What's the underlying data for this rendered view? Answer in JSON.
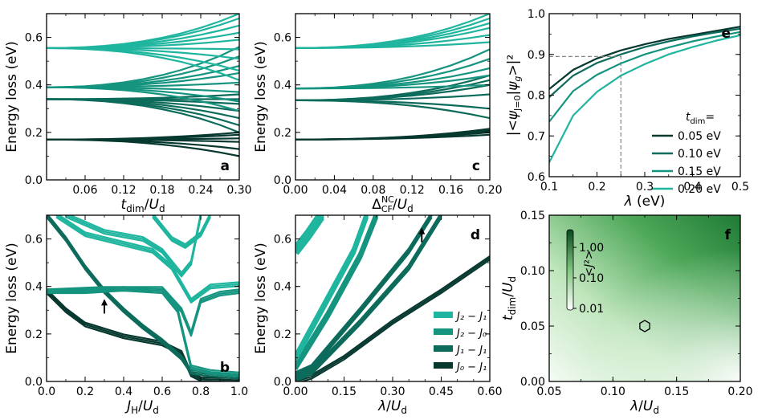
{
  "colors": {
    "teal_light": "#1fb59e",
    "teal_mid": "#15947f",
    "teal_dark": "#0c6b5a",
    "teal_darkest": "#06382f",
    "green_heat": "#2e8b3e"
  },
  "chart_data": [
    {
      "id": "a",
      "type": "line",
      "panel_label": "a",
      "xlabel": "t_dim/U_d",
      "ylabel": "Energy loss (eV)",
      "xlim": [
        0.0,
        0.3
      ],
      "ylim": [
        0.0,
        0.7
      ],
      "xticks": [
        0.06,
        0.12,
        0.18,
        0.24,
        0.3
      ],
      "xtick_labels": [
        "0.06",
        "0.12",
        "0.18",
        "0.24",
        "0.30"
      ],
      "yticks": [
        0.0,
        0.2,
        0.4,
        0.6
      ],
      "ytick_labels": [
        "0.0",
        "0.2",
        "0.4",
        "0.6"
      ],
      "bands": [
        {
          "start": 0.17,
          "ends": [
            0.1,
            0.13,
            0.16,
            0.175,
            0.19,
            0.2
          ],
          "color": "teal_darkest"
        },
        {
          "start": 0.34,
          "ends": [
            0.2,
            0.23,
            0.26,
            0.29,
            0.32,
            0.34,
            0.36
          ],
          "color": "teal_dark"
        },
        {
          "start": 0.39,
          "ends": [
            0.29,
            0.33,
            0.37,
            0.41,
            0.45,
            0.48,
            0.52,
            0.56
          ],
          "color": "teal_mid"
        },
        {
          "start": 0.555,
          "ends": [
            0.42,
            0.46,
            0.51,
            0.55,
            0.59,
            0.62,
            0.65,
            0.68,
            0.7
          ],
          "color": "teal_light"
        }
      ]
    },
    {
      "id": "b",
      "type": "line",
      "panel_label": "b",
      "xlabel": "J_H/U_d",
      "ylabel": "Energy loss (eV)",
      "xlim": [
        0.0,
        1.0
      ],
      "ylim": [
        0.0,
        0.7
      ],
      "xticks": [
        0.0,
        0.2,
        0.4,
        0.6,
        0.8,
        1.0
      ],
      "xtick_labels": [
        "0.0",
        "0.2",
        "0.4",
        "0.6",
        "0.8",
        "1.0"
      ],
      "yticks": [
        0.0,
        0.2,
        0.4,
        0.6
      ],
      "ytick_labels": [
        "0.0",
        "0.2",
        "0.4",
        "0.6"
      ],
      "arrow_at": [
        0.3,
        0.32
      ],
      "curves": [
        {
          "points": [
            [
              0,
              0.38
            ],
            [
              0.1,
              0.3
            ],
            [
              0.2,
              0.24
            ],
            [
              0.4,
              0.19
            ],
            [
              0.6,
              0.16
            ],
            [
              0.7,
              0.12
            ],
            [
              0.75,
              0.03
            ],
            [
              0.8,
              0.01
            ],
            [
              1.0,
              0.005
            ]
          ],
          "color": "teal_darkest"
        },
        {
          "points": [
            [
              0,
              0.7
            ],
            [
              0.1,
              0.6
            ],
            [
              0.2,
              0.48
            ],
            [
              0.3,
              0.38
            ],
            [
              0.4,
              0.3
            ],
            [
              0.5,
              0.23
            ],
            [
              0.6,
              0.17
            ],
            [
              0.7,
              0.1
            ],
            [
              0.75,
              0.04
            ],
            [
              0.85,
              0.03
            ],
            [
              1.0,
              0.02
            ]
          ],
          "color": "teal_dark"
        },
        {
          "points": [
            [
              0,
              0.38
            ],
            [
              0.2,
              0.38
            ],
            [
              0.4,
              0.39
            ],
            [
              0.6,
              0.38
            ],
            [
              0.68,
              0.3
            ],
            [
              0.75,
              0.06
            ],
            [
              0.85,
              0.04
            ],
            [
              1.0,
              0.03
            ]
          ],
          "color": "teal_mid"
        },
        {
          "points": [
            [
              0,
              0.38
            ],
            [
              0.3,
              0.39
            ],
            [
              0.6,
              0.39
            ],
            [
              0.7,
              0.3
            ],
            [
              0.75,
              0.2
            ],
            [
              0.8,
              0.34
            ],
            [
              0.9,
              0.37
            ],
            [
              1.0,
              0.38
            ]
          ],
          "color": "teal_mid"
        },
        {
          "points": [
            [
              0.05,
              0.7
            ],
            [
              0.2,
              0.62
            ],
            [
              0.4,
              0.58
            ],
            [
              0.55,
              0.55
            ],
            [
              0.65,
              0.48
            ],
            [
              0.75,
              0.34
            ],
            [
              0.85,
              0.4
            ],
            [
              1.0,
              0.41
            ]
          ],
          "color": "teal_light"
        },
        {
          "points": [
            [
              0.1,
              0.7
            ],
            [
              0.3,
              0.63
            ],
            [
              0.5,
              0.6
            ],
            [
              0.6,
              0.55
            ],
            [
              0.7,
              0.45
            ],
            [
              0.75,
              0.5
            ],
            [
              0.8,
              0.7
            ]
          ],
          "color": "teal_light"
        },
        {
          "points": [
            [
              0.55,
              0.7
            ],
            [
              0.65,
              0.6
            ],
            [
              0.72,
              0.57
            ],
            [
              0.8,
              0.62
            ],
            [
              0.85,
              0.7
            ]
          ],
          "color": "teal_light"
        }
      ]
    },
    {
      "id": "c",
      "type": "line",
      "panel_label": "c",
      "xlabel": "Δ_CF^NC/U_d",
      "ylabel": "Energy loss (eV)",
      "xlim": [
        0.0,
        0.2
      ],
      "ylim": [
        0.0,
        0.7
      ],
      "xticks": [
        0.0,
        0.04,
        0.08,
        0.12,
        0.16,
        0.2
      ],
      "xtick_labels": [
        "0.00",
        "0.04",
        "0.08",
        "0.12",
        "0.16",
        "0.20"
      ],
      "yticks": [
        0.0,
        0.2,
        0.4,
        0.6
      ],
      "ytick_labels": [
        "0.0",
        "0.2",
        "0.4",
        "0.6"
      ],
      "bands": [
        {
          "start": 0.17,
          "ends": [
            0.19,
            0.2,
            0.205,
            0.21,
            0.215
          ],
          "color": "teal_darkest"
        },
        {
          "start": 0.335,
          "ends": [
            0.26,
            0.3,
            0.36,
            0.4,
            0.42,
            0.44
          ],
          "color": "teal_dark"
        },
        {
          "start": 0.385,
          "ends": [
            0.4,
            0.44,
            0.47,
            0.51,
            0.55
          ],
          "color": "teal_mid"
        },
        {
          "start": 0.555,
          "ends": [
            0.58,
            0.61,
            0.64,
            0.66,
            0.68,
            0.7
          ],
          "color": "teal_light"
        }
      ]
    },
    {
      "id": "d",
      "type": "line",
      "panel_label": "d",
      "xlabel": "λ/U_d",
      "ylabel": "Energy loss (eV)",
      "xlim": [
        0.0,
        0.6
      ],
      "ylim": [
        0.0,
        0.7
      ],
      "xticks": [
        0.0,
        0.15,
        0.3,
        0.45,
        0.6
      ],
      "xtick_labels": [
        "0.00",
        "0.15",
        "0.30",
        "0.45",
        "0.60"
      ],
      "yticks": [
        0.0,
        0.2,
        0.4,
        0.6
      ],
      "ytick_labels": [
        "0.0",
        "0.2",
        "0.4",
        "0.6"
      ],
      "arrow_at": [
        0.39,
        0.62
      ],
      "legend": [
        {
          "label": "J₂ − J₁",
          "color": "teal_light"
        },
        {
          "label": "J₂ − J₀",
          "color": "teal_mid"
        },
        {
          "label": "J₁ − J₁",
          "color": "teal_dark"
        },
        {
          "label": "J₀ − J₁",
          "color": "teal_darkest"
        }
      ],
      "curves": [
        {
          "points": [
            [
              0,
              0.0
            ],
            [
              0.05,
              0.02
            ],
            [
              0.15,
              0.1
            ],
            [
              0.3,
              0.25
            ],
            [
              0.45,
              0.38
            ],
            [
              0.6,
              0.52
            ]
          ],
          "color": "teal_darkest",
          "width": 2
        },
        {
          "points": [
            [
              0,
              0.01
            ],
            [
              0.05,
              0.04
            ],
            [
              0.2,
              0.25
            ],
            [
              0.35,
              0.48
            ],
            [
              0.45,
              0.7
            ]
          ],
          "color": "teal_dark",
          "width": 3
        },
        {
          "points": [
            [
              0,
              0.03
            ],
            [
              0.05,
              0.06
            ],
            [
              0.2,
              0.3
            ],
            [
              0.35,
              0.55
            ],
            [
              0.42,
              0.7
            ]
          ],
          "color": "teal_dark",
          "width": 3
        },
        {
          "points": [
            [
              0,
              0.06
            ],
            [
              0.1,
              0.28
            ],
            [
              0.2,
              0.53
            ],
            [
              0.25,
              0.7
            ]
          ],
          "color": "teal_mid",
          "width": 5
        },
        {
          "points": [
            [
              0,
              0.1
            ],
            [
              0.08,
              0.3
            ],
            [
              0.18,
              0.55
            ],
            [
              0.22,
              0.7
            ]
          ],
          "color": "teal_light",
          "width": 5
        },
        {
          "points": [
            [
              0,
              0.55
            ],
            [
              0.04,
              0.62
            ],
            [
              0.08,
              0.7
            ]
          ],
          "color": "teal_light",
          "width": 9
        }
      ]
    },
    {
      "id": "e",
      "type": "line",
      "panel_label": "e",
      "xlabel": "λ (eV)",
      "ylabel": "|<ψ_J=0|ψ_g>|²",
      "xlim": [
        0.1,
        0.5
      ],
      "ylim": [
        0.6,
        1.0
      ],
      "xticks": [
        0.1,
        0.2,
        0.3,
        0.4,
        0.5
      ],
      "xtick_labels": [
        "0.1",
        "0.2",
        "0.3",
        "0.4",
        "0.5"
      ],
      "yticks": [
        0.6,
        0.7,
        0.8,
        0.9,
        1.0
      ],
      "ytick_labels": [
        "0.6",
        "0.7",
        "0.8",
        "0.9",
        "1.0"
      ],
      "reference": {
        "x": 0.25,
        "y": 0.895
      },
      "legend_title": "t_dim=",
      "series": [
        {
          "name": "0.05 eV",
          "color": "teal_darkest",
          "points": [
            [
              0.1,
              0.815
            ],
            [
              0.15,
              0.862
            ],
            [
              0.2,
              0.89
            ],
            [
              0.25,
              0.91
            ],
            [
              0.3,
              0.925
            ],
            [
              0.35,
              0.938
            ],
            [
              0.4,
              0.948
            ],
            [
              0.45,
              0.958
            ],
            [
              0.5,
              0.968
            ]
          ]
        },
        {
          "name": "0.10 eV",
          "color": "teal_dark",
          "points": [
            [
              0.1,
              0.795
            ],
            [
              0.15,
              0.848
            ],
            [
              0.2,
              0.879
            ],
            [
              0.25,
              0.9
            ],
            [
              0.3,
              0.918
            ],
            [
              0.35,
              0.932
            ],
            [
              0.4,
              0.944
            ],
            [
              0.45,
              0.954
            ],
            [
              0.5,
              0.963
            ]
          ]
        },
        {
          "name": "0.15 eV",
          "color": "teal_mid",
          "points": [
            [
              0.1,
              0.735
            ],
            [
              0.15,
              0.81
            ],
            [
              0.2,
              0.85
            ],
            [
              0.25,
              0.878
            ],
            [
              0.3,
              0.9
            ],
            [
              0.35,
              0.917
            ],
            [
              0.4,
              0.932
            ],
            [
              0.45,
              0.944
            ],
            [
              0.5,
              0.955
            ]
          ]
        },
        {
          "name": "0.20 eV",
          "color": "teal_light",
          "points": [
            [
              0.1,
              0.635
            ],
            [
              0.15,
              0.75
            ],
            [
              0.2,
              0.808
            ],
            [
              0.25,
              0.848
            ],
            [
              0.3,
              0.876
            ],
            [
              0.35,
              0.9
            ],
            [
              0.4,
              0.918
            ],
            [
              0.45,
              0.934
            ],
            [
              0.5,
              0.947
            ]
          ]
        }
      ]
    },
    {
      "id": "f",
      "type": "heatmap",
      "panel_label": "f",
      "xlabel": "λ/U_d",
      "ylabel": "t_dim/U_d",
      "xlim": [
        0.05,
        0.2
      ],
      "ylim": [
        0.0,
        0.15
      ],
      "xticks": [
        0.05,
        0.1,
        0.15,
        0.2
      ],
      "xtick_labels": [
        "0.05",
        "0.10",
        "0.15",
        "0.20"
      ],
      "yticks": [
        0.0,
        0.05,
        0.1,
        0.15
      ],
      "ytick_labels": [
        "0.00",
        "0.05",
        "0.10",
        "0.15"
      ],
      "colorbar_label": "<J²>",
      "colorbar_ticks": [
        "1.00",
        "0.10",
        "0.01"
      ],
      "marker": {
        "x": 0.125,
        "y": 0.05,
        "shape": "hexagon"
      }
    }
  ]
}
